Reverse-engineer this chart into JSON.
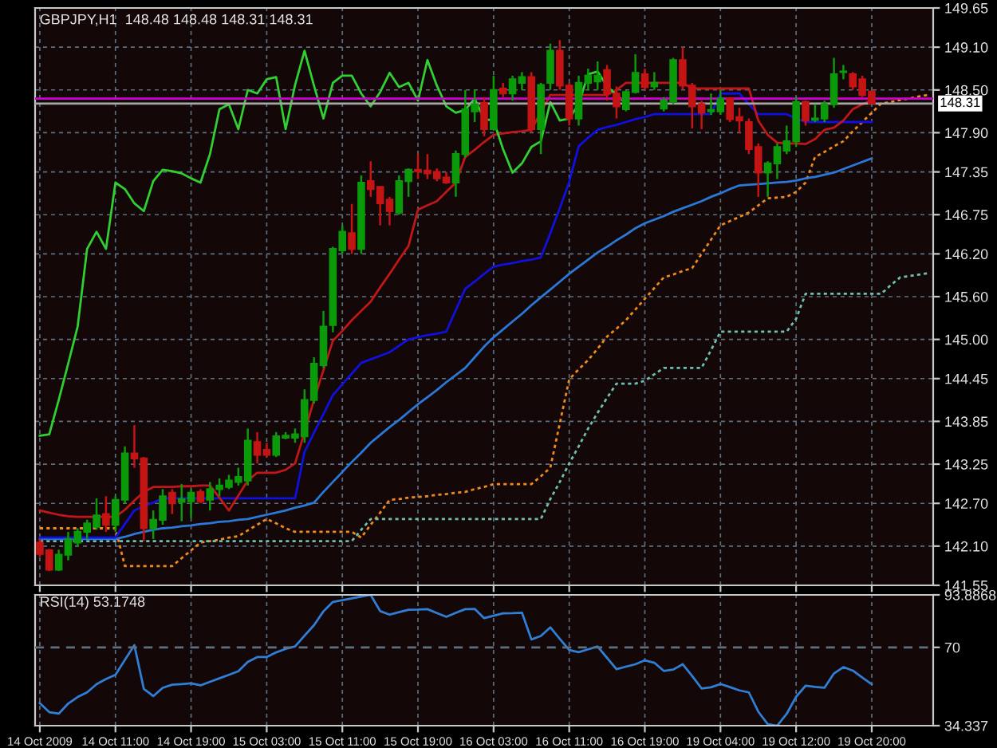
{
  "chart_data": [
    {
      "type": "candlestick",
      "title": "GBPJPY,H1  148.48 148.48 148.31 148.31",
      "categories": [
        null,
        null,
        null,
        null,
        null,
        null,
        null,
        null,
        null,
        null,
        null,
        null,
        null,
        null,
        null,
        null,
        null,
        null,
        null,
        null,
        null,
        null,
        null,
        null,
        null,
        null,
        null,
        null,
        null,
        null,
        null,
        null,
        null,
        null,
        null,
        null,
        null,
        null,
        null,
        null,
        null,
        null,
        null,
        null,
        null,
        null,
        null,
        null,
        null,
        null,
        null,
        null,
        null,
        null,
        null,
        null,
        null,
        null,
        null,
        null,
        null,
        null,
        null,
        null,
        null,
        null,
        null,
        null,
        null,
        null,
        null,
        null,
        null,
        null,
        null,
        null,
        null,
        null,
        null,
        null,
        null,
        null,
        null,
        null,
        null,
        null,
        null,
        null,
        null,
        null,
        null,
        null,
        null,
        null,
        null
      ],
      "ylim": [
        141.55,
        149.65
      ],
      "yticks": [
        149.65,
        {
          "value": 149.1,
          "label": "149.10"
        },
        {
          "value": 148.5,
          "label": "148.50"
        },
        {
          "value": 147.9,
          "label": "147.90"
        },
        147.35,
        146.75,
        {
          "value": 146.2,
          "label": "146.20"
        },
        {
          "value": 145.6,
          "label": "145.60"
        },
        {
          "value": 145.0,
          "label": "145.00"
        },
        144.45,
        143.85,
        143.25,
        {
          "value": 142.7,
          "label": "142.70"
        },
        {
          "value": 142.1,
          "label": "142.10"
        },
        141.55
      ],
      "tick_labels": "y",
      "grid": true,
      "ref_lines": [
        {
          "axis": "y",
          "value": 148.38,
          "color": "#d000d0"
        },
        {
          "axis": "y",
          "value": 148.31,
          "label": "148.31",
          "color": "#a8a8a8"
        }
      ],
      "series": [
        {
          "type": "line",
          "color": "#f08a1c",
          "line_style": "dotted",
          "values": [
            142.35,
            142.35,
            142.35,
            142.35,
            142.35,
            142.35,
            142.35,
            142.35,
            142.35,
            141.82,
            141.82,
            141.82,
            141.82,
            141.82,
            141.82,
            141.93,
            142.04,
            142.15,
            142.17,
            142.19,
            142.22,
            142.24,
            142.32,
            142.4,
            142.48,
            142.42,
            142.35,
            142.3,
            142.3,
            142.3,
            142.3,
            142.3,
            142.3,
            142.3,
            142.22,
            142.4,
            142.57,
            142.75,
            142.76,
            142.78,
            142.79,
            142.8,
            142.82,
            142.83,
            142.85,
            142.86,
            142.9,
            142.93,
            142.97,
            142.97,
            142.97,
            142.97,
            142.97,
            143.08,
            143.2,
            143.82,
            144.44,
            144.58,
            144.71,
            144.87,
            145.04,
            145.15,
            145.27,
            145.42,
            145.57,
            145.72,
            145.87,
            145.91,
            145.96,
            146.0,
            146.2,
            146.4,
            146.6,
            146.66,
            146.72,
            146.78,
            146.88,
            146.98,
            146.99,
            147.0,
            147.07,
            147.2,
            147.56,
            147.63,
            147.71,
            147.78,
            147.92,
            148.05,
            148.18,
            148.31,
            148.33,
            148.36,
            148.38,
            148.41,
            148.43
          ]
        },
        {
          "type": "line",
          "color": "#6cc0b0",
          "line_style": "dotted",
          "values": [
            142.17,
            142.17,
            142.17,
            142.17,
            142.17,
            142.17,
            142.17,
            142.17,
            142.17,
            142.17,
            142.17,
            142.17,
            142.17,
            142.17,
            142.17,
            142.17,
            142.17,
            142.17,
            142.17,
            142.17,
            142.17,
            142.17,
            142.17,
            142.17,
            142.17,
            142.17,
            142.17,
            142.17,
            142.17,
            142.17,
            142.17,
            142.17,
            142.17,
            142.17,
            142.33,
            142.48,
            142.48,
            142.48,
            142.48,
            142.48,
            142.48,
            142.48,
            142.48,
            142.48,
            142.48,
            142.48,
            142.48,
            142.48,
            142.48,
            142.48,
            142.48,
            142.48,
            142.48,
            142.48,
            142.76,
            143.0,
            143.26,
            143.5,
            143.75,
            143.97,
            144.18,
            144.38,
            144.38,
            144.38,
            144.42,
            144.51,
            144.6,
            144.6,
            144.6,
            144.6,
            144.6,
            144.85,
            145.11,
            145.11,
            145.11,
            145.11,
            145.11,
            145.11,
            145.11,
            145.11,
            145.29,
            145.64,
            145.64,
            145.64,
            145.64,
            145.64,
            145.64,
            145.64,
            145.64,
            145.64,
            145.76,
            145.87,
            145.89,
            145.91,
            145.93
          ]
        },
        {
          "type": "line",
          "color": "#2a78d8",
          "values": [
            142.2,
            142.2,
            142.2,
            142.2,
            142.2,
            142.2,
            142.2,
            142.2,
            142.2,
            142.23,
            142.27,
            142.3,
            142.33,
            142.35,
            142.36,
            142.38,
            142.39,
            142.41,
            142.42,
            142.44,
            142.45,
            142.47,
            142.48,
            142.51,
            142.54,
            142.57,
            142.6,
            142.64,
            142.67,
            142.71,
            142.86,
            143.0,
            143.14,
            143.28,
            143.41,
            143.55,
            143.66,
            143.77,
            143.87,
            143.98,
            144.09,
            144.19,
            144.29,
            144.4,
            144.5,
            144.6,
            144.75,
            144.9,
            145.03,
            145.14,
            145.25,
            145.36,
            145.48,
            145.59,
            145.7,
            145.81,
            145.92,
            146.02,
            146.12,
            146.22,
            146.3,
            146.39,
            146.47,
            146.56,
            146.63,
            146.68,
            146.73,
            146.79,
            146.84,
            146.89,
            146.94,
            147.0,
            147.05,
            147.11,
            147.16,
            147.17,
            147.18,
            147.19,
            147.2,
            147.21,
            147.23,
            147.26,
            147.28,
            147.31,
            147.34,
            147.39,
            147.44,
            147.49,
            147.54,
            null,
            null,
            null,
            null,
            null,
            null
          ]
        },
        {
          "type": "line",
          "color": "#1010e0",
          "values": [
            142.22,
            142.22,
            142.22,
            142.22,
            142.22,
            142.22,
            142.22,
            142.22,
            142.22,
            142.41,
            142.6,
            142.66,
            142.71,
            142.77,
            142.77,
            142.77,
            142.77,
            142.77,
            142.77,
            142.77,
            142.77,
            142.77,
            142.77,
            142.77,
            142.77,
            142.77,
            142.77,
            142.77,
            143.42,
            143.69,
            143.95,
            144.22,
            144.37,
            144.52,
            144.67,
            144.72,
            144.77,
            144.82,
            144.91,
            145.0,
            145.03,
            145.06,
            145.08,
            145.11,
            145.41,
            145.71,
            145.81,
            145.92,
            146.02,
            146.05,
            146.07,
            146.1,
            146.12,
            146.15,
            146.49,
            146.84,
            147.21,
            147.71,
            147.83,
            147.94,
            147.98,
            148.01,
            148.05,
            148.09,
            148.12,
            148.16,
            148.16,
            148.16,
            148.16,
            148.16,
            148.16,
            148.16,
            148.45,
            148.45,
            148.45,
            148.3,
            148.16,
            148.16,
            148.16,
            148.16,
            148.1,
            148.05,
            148.05,
            148.05,
            148.05,
            148.05,
            148.05,
            148.05,
            148.05,
            null,
            null,
            null,
            null,
            null,
            null
          ]
        },
        {
          "type": "line",
          "color": "#c01818",
          "values": [
            142.6,
            142.57,
            142.54,
            142.52,
            142.51,
            142.51,
            142.51,
            142.51,
            142.51,
            142.61,
            142.74,
            142.86,
            142.93,
            142.93,
            142.93,
            142.94,
            142.94,
            142.95,
            142.95,
            142.78,
            142.6,
            142.81,
            143.02,
            143.13,
            143.13,
            143.13,
            143.17,
            143.26,
            143.7,
            144.15,
            144.57,
            144.98,
            145.12,
            145.27,
            145.4,
            145.53,
            145.73,
            145.92,
            146.12,
            146.31,
            146.82,
            146.88,
            146.94,
            147.07,
            147.2,
            147.56,
            147.66,
            147.77,
            147.87,
            147.89,
            147.91,
            147.92,
            147.94,
            148.19,
            148.43,
            148.43,
            148.43,
            148.43,
            148.43,
            148.43,
            148.43,
            148.5,
            148.6,
            148.6,
            148.6,
            148.6,
            148.6,
            148.6,
            148.6,
            148.52,
            148.52,
            148.52,
            148.52,
            148.52,
            148.52,
            148.52,
            148.07,
            147.87,
            147.76,
            147.75,
            147.75,
            147.74,
            147.81,
            147.94,
            147.97,
            148.07,
            148.23,
            148.3,
            148.35,
            null,
            null,
            null,
            null,
            null,
            null
          ]
        },
        {
          "type": "line",
          "color": "#30d030",
          "values": [
            143.65,
            143.67,
            144.15,
            144.66,
            145.18,
            146.27,
            146.51,
            146.27,
            147.2,
            147.11,
            146.91,
            146.8,
            147.22,
            147.38,
            147.36,
            147.33,
            147.26,
            147.2,
            147.6,
            148.23,
            148.3,
            147.95,
            148.5,
            148.45,
            148.65,
            148.68,
            147.95,
            148.57,
            149.05,
            148.56,
            148.1,
            148.6,
            148.7,
            148.7,
            148.45,
            148.27,
            148.47,
            148.74,
            148.54,
            148.6,
            148.35,
            148.92,
            148.56,
            148.27,
            148.18,
            148.22,
            148.38,
            148.09,
            148.07,
            147.67,
            147.34,
            147.47,
            147.7,
            147.78,
            148.33,
            148.07,
            148.1,
            148.3,
            148.72,
            148.76,
            148.55,
            148.43,
            148.31,
            null,
            null,
            null,
            null,
            null,
            null,
            null,
            null,
            null,
            null,
            null,
            null,
            null,
            null,
            null,
            null,
            null,
            null,
            null,
            null,
            null,
            null,
            null,
            null,
            null,
            null,
            null,
            null,
            null,
            null,
            null,
            null
          ]
        },
        {
          "type": "candlestick",
          "ohlc": [
            [
              142.15,
              142.2,
              141.95,
              141.99
            ],
            [
              142.04,
              142.06,
              141.75,
              141.77
            ],
            [
              141.77,
              142.05,
              141.75,
              141.98
            ],
            [
              141.98,
              142.3,
              141.9,
              142.2
            ],
            [
              142.15,
              142.35,
              142.1,
              142.3
            ],
            [
              142.3,
              142.47,
              142.2,
              142.42
            ],
            [
              142.37,
              142.77,
              142.33,
              142.53
            ],
            [
              142.55,
              142.8,
              142.3,
              142.4
            ],
            [
              142.4,
              142.8,
              142.3,
              142.75
            ],
            [
              142.75,
              143.5,
              142.7,
              143.4
            ],
            [
              143.4,
              143.8,
              143.2,
              143.33
            ],
            [
              143.33,
              143.35,
              142.17,
              142.35
            ],
            [
              142.35,
              142.6,
              142.2,
              142.47
            ],
            [
              142.47,
              142.9,
              142.4,
              142.8
            ],
            [
              142.85,
              142.9,
              142.55,
              142.7
            ],
            [
              142.72,
              142.97,
              142.45,
              142.76
            ],
            [
              142.73,
              142.9,
              142.5,
              142.85
            ],
            [
              142.86,
              142.9,
              142.7,
              142.73
            ],
            [
              142.75,
              143.0,
              142.6,
              142.9
            ],
            [
              142.9,
              143.05,
              142.8,
              142.95
            ],
            [
              142.93,
              143.1,
              142.9,
              143.02
            ],
            [
              143.0,
              143.2,
              142.95,
              143.07
            ],
            [
              143.02,
              143.75,
              142.95,
              143.58
            ],
            [
              143.56,
              143.7,
              143.26,
              143.38
            ],
            [
              143.45,
              143.55,
              143.35,
              143.38
            ],
            [
              143.38,
              143.7,
              143.35,
              143.64
            ],
            [
              143.62,
              143.7,
              143.6,
              143.65
            ],
            [
              143.62,
              143.75,
              143.55,
              143.67
            ],
            [
              143.64,
              144.3,
              143.55,
              144.15
            ],
            [
              144.15,
              144.75,
              144.1,
              144.66
            ],
            [
              144.64,
              145.4,
              144.6,
              145.18
            ],
            [
              145.2,
              146.3,
              145.1,
              146.27
            ],
            [
              146.25,
              146.6,
              146.2,
              146.51
            ],
            [
              146.49,
              146.9,
              146.2,
              146.27
            ],
            [
              146.27,
              147.3,
              146.2,
              147.2
            ],
            [
              147.22,
              147.5,
              147.0,
              147.11
            ],
            [
              147.14,
              147.15,
              146.6,
              146.91
            ],
            [
              146.96,
              147.0,
              146.6,
              146.8
            ],
            [
              146.78,
              147.3,
              146.75,
              147.22
            ],
            [
              147.22,
              147.4,
              147.0,
              147.38
            ],
            [
              147.38,
              147.6,
              147.25,
              147.36
            ],
            [
              147.37,
              147.6,
              147.25,
              147.33
            ],
            [
              147.35,
              147.4,
              147.22,
              147.26
            ],
            [
              147.27,
              147.35,
              147.18,
              147.2
            ],
            [
              147.2,
              147.65,
              147.0,
              147.6
            ],
            [
              147.6,
              148.5,
              147.55,
              148.23
            ],
            [
              148.2,
              148.5,
              148.05,
              148.3
            ],
            [
              148.32,
              148.4,
              147.85,
              147.95
            ],
            [
              147.95,
              148.7,
              147.95,
              148.5
            ],
            [
              148.52,
              148.6,
              148.4,
              148.45
            ],
            [
              148.45,
              148.7,
              148.35,
              148.65
            ],
            [
              148.6,
              148.75,
              148.5,
              148.68
            ],
            [
              148.68,
              148.75,
              147.9,
              147.95
            ],
            [
              147.95,
              148.6,
              147.6,
              148.57
            ],
            [
              148.6,
              149.15,
              148.5,
              149.05
            ],
            [
              149.05,
              149.2,
              148.5,
              148.56
            ],
            [
              148.56,
              148.6,
              148.0,
              148.1
            ],
            [
              148.1,
              148.7,
              148.0,
              148.6
            ],
            [
              148.6,
              148.8,
              148.5,
              148.7
            ],
            [
              148.62,
              148.9,
              148.5,
              148.7
            ],
            [
              148.78,
              148.85,
              148.35,
              148.45
            ],
            [
              148.45,
              148.55,
              148.1,
              148.27
            ],
            [
              148.23,
              148.5,
              148.2,
              148.47
            ],
            [
              148.47,
              149.0,
              148.45,
              148.74
            ],
            [
              148.72,
              148.8,
              148.5,
              148.54
            ],
            [
              148.55,
              148.75,
              148.5,
              148.6
            ],
            [
              148.24,
              148.4,
              148.2,
              148.35
            ],
            [
              148.34,
              148.95,
              148.3,
              148.92
            ],
            [
              148.92,
              149.1,
              148.5,
              148.56
            ],
            [
              148.56,
              148.6,
              147.96,
              148.27
            ],
            [
              148.3,
              148.35,
              147.95,
              148.18
            ],
            [
              148.2,
              148.45,
              148.15,
              148.22
            ],
            [
              148.2,
              148.5,
              148.15,
              148.38
            ],
            [
              148.38,
              148.4,
              148.05,
              148.09
            ],
            [
              148.12,
              148.25,
              147.9,
              148.07
            ],
            [
              148.05,
              148.1,
              147.6,
              147.67
            ],
            [
              147.7,
              147.75,
              147.0,
              147.34
            ],
            [
              147.34,
              147.5,
              147.0,
              147.47
            ],
            [
              147.47,
              147.75,
              147.25,
              147.7
            ],
            [
              147.65,
              148.0,
              147.6,
              147.78
            ],
            [
              147.78,
              148.4,
              147.7,
              148.33
            ],
            [
              148.33,
              148.35,
              148.0,
              148.07
            ],
            [
              148.08,
              148.3,
              148.05,
              148.1
            ],
            [
              148.1,
              148.35,
              148.05,
              148.3
            ],
            [
              148.3,
              148.95,
              148.25,
              148.72
            ],
            [
              148.75,
              148.85,
              148.65,
              148.76
            ],
            [
              148.72,
              148.75,
              148.5,
              148.55
            ],
            [
              148.65,
              148.7,
              148.4,
              148.43
            ],
            [
              148.48,
              148.48,
              148.31,
              148.31
            ],
            null,
            null,
            null,
            null,
            null,
            null
          ]
        }
      ]
    },
    {
      "type": "line",
      "title": "RSI(14) 53.1748",
      "categories": [
        "14 Oct 2009",
        null,
        null,
        null,
        null,
        null,
        null,
        null,
        "14 Oct 11:00",
        null,
        null,
        null,
        null,
        null,
        null,
        null,
        "14 Oct 19:00",
        null,
        null,
        null,
        null,
        null,
        null,
        null,
        "15 Oct 03:00",
        null,
        null,
        null,
        null,
        null,
        null,
        null,
        "15 Oct 11:00",
        null,
        null,
        null,
        null,
        null,
        null,
        null,
        "15 Oct 19:00",
        null,
        null,
        null,
        null,
        null,
        null,
        null,
        "16 Oct 03:00",
        null,
        null,
        null,
        null,
        null,
        null,
        null,
        "16 Oct 11:00",
        null,
        null,
        null,
        null,
        null,
        null,
        null,
        "16 Oct 19:00",
        null,
        null,
        null,
        null,
        null,
        null,
        null,
        "19 Oct 04:00",
        null,
        null,
        null,
        null,
        null,
        null,
        null,
        "19 Oct 12:00",
        null,
        null,
        null,
        null,
        null,
        null,
        null,
        "19 Oct 20:00",
        null,
        null,
        null,
        null,
        null,
        null
      ],
      "ylim": [
        34.337,
        93.8868
      ],
      "yticks": [
        93.8868,
        70,
        34.337
      ],
      "grid": "x",
      "ref_lines": [
        {
          "axis": "y",
          "value": 70,
          "color": "#5c7080",
          "line_style": "dashed"
        }
      ],
      "series": [
        {
          "color": "#2f7fd6",
          "values": [
            44.6,
            40.5,
            39.8,
            44.4,
            47.4,
            49.5,
            53.2,
            55.6,
            57.5,
            64.3,
            71.0,
            51.1,
            47.8,
            51.6,
            53.0,
            53.3,
            53.6,
            52.7,
            54.3,
            55.9,
            57.5,
            59.1,
            63.4,
            65.6,
            65.6,
            67.7,
            69.3,
            70.4,
            75.3,
            80.1,
            86.4,
            90.7,
            91.5,
            92.3,
            93.1,
            93.8868,
            86.5,
            84.9,
            86.0,
            87.1,
            87.2,
            87.4,
            85.6,
            83.9,
            85.7,
            87.4,
            87.5,
            83.3,
            84.4,
            85.5,
            85.6,
            85.8,
            73.6,
            75.2,
            79.1,
            73.9,
            68.8,
            67.8,
            69.1,
            70.4,
            65.2,
            60.1,
            61.2,
            62.3,
            64.1,
            63.0,
            59.3,
            59.9,
            62.3,
            57.0,
            51.3,
            51.8,
            53.3,
            51.9,
            50.4,
            49.5,
            40.7,
            35.0,
            34.337,
            39.7,
            47.5,
            52.5,
            52.0,
            51.6,
            58.1,
            61.0,
            59.4,
            56.3,
            53.2,
            null,
            null,
            null,
            null,
            null,
            null
          ]
        }
      ]
    }
  ]
}
